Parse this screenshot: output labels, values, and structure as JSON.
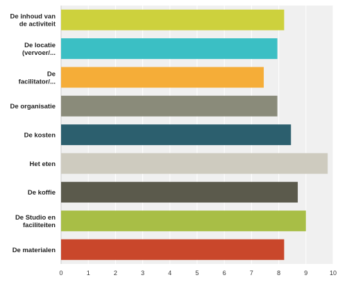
{
  "chart_data": {
    "type": "bar",
    "orientation": "horizontal",
    "categories": [
      [
        "De inhoud van",
        "de activiteit"
      ],
      [
        "De locatie",
        "(vervoer/..."
      ],
      [
        "De",
        "facilitator/..."
      ],
      [
        "De organisatie"
      ],
      [
        "De kosten"
      ],
      [
        "Het eten"
      ],
      [
        "De koffie"
      ],
      [
        "De Studio en",
        "faciliteiten"
      ],
      [
        "De materialen"
      ]
    ],
    "values": [
      8.2,
      7.95,
      7.45,
      7.95,
      8.45,
      9.8,
      8.7,
      9.0,
      8.2
    ],
    "colors": [
      "#cdd13d",
      "#3bbfc4",
      "#f5ad38",
      "#8a8b7a",
      "#2c5f6e",
      "#cecbbf",
      "#5b5a4c",
      "#a8be46",
      "#c9472b"
    ],
    "xlim": [
      0,
      10
    ],
    "xticks": [
      0,
      1,
      2,
      3,
      4,
      5,
      6,
      7,
      8,
      9,
      10
    ],
    "grid": true,
    "title": "",
    "xlabel": "",
    "ylabel": ""
  }
}
